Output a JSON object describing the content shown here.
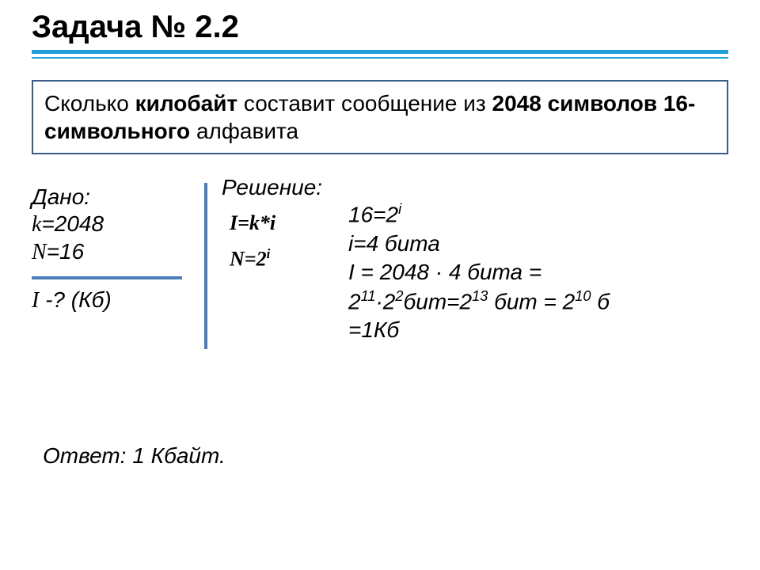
{
  "title": "Задача № 2.2",
  "problem": {
    "pre": "Сколько ",
    "b1": "килобайт",
    "mid": " составит сообщение из ",
    "b2": "2048 символов 16-символьного",
    "post": " алфавита"
  },
  "given": {
    "label": "Дано:",
    "k_var": "k",
    "k_val": "=2048",
    "n_var": "N",
    "n_val": "=16",
    "i_var": "I",
    "i_tail": " -? (Кб)"
  },
  "solution": {
    "label": "Решение:",
    "f1_lhs": "I=k*i",
    "f2_lhs": "N=2",
    "f2_sup": "i"
  },
  "calc": {
    "l1_a": "16=2",
    "l1_sup": "i",
    "l2": "i=4 бита",
    "l3": "I = 2048 · 4 бита =",
    "l4_a": "2",
    "l4_s1": "11",
    "l4_b": "·2",
    "l4_s2": "2",
    "l4_c": "бит=2",
    "l4_s3": "13",
    "l4_d": " бит = 2",
    "l4_s4": "10",
    "l4_e": " б",
    "l5": "=1Кб"
  },
  "answer": "Ответ: 1 Кбайт.",
  "colors": {
    "rule": "#1e9ed8",
    "box_border": "#385d8a",
    "divider": "#4a7ebb",
    "text": "#000000",
    "background": "#ffffff"
  }
}
